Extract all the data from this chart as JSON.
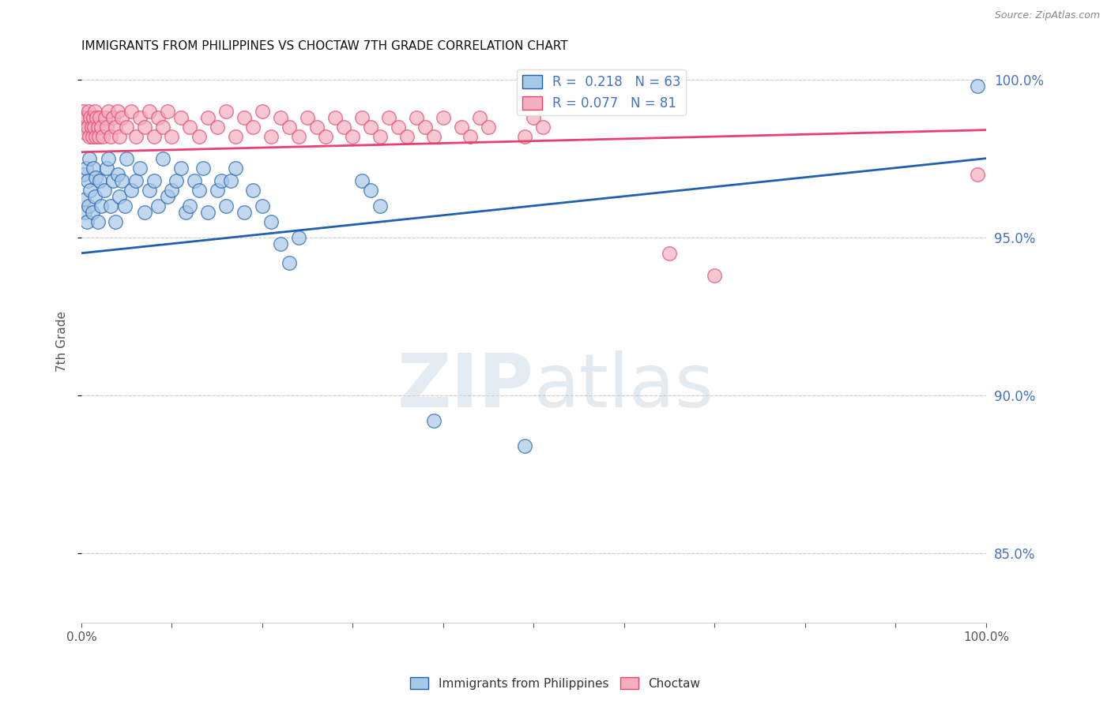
{
  "title": "IMMIGRANTS FROM PHILIPPINES VS CHOCTAW 7TH GRADE CORRELATION CHART",
  "source": "Source: ZipAtlas.com",
  "ylabel": "7th Grade",
  "right_yticks": [
    "85.0%",
    "90.0%",
    "95.0%",
    "100.0%"
  ],
  "right_ytick_vals": [
    0.85,
    0.9,
    0.95,
    1.0
  ],
  "legend_blue_r": "0.218",
  "legend_blue_n": "63",
  "legend_pink_r": "0.077",
  "legend_pink_n": "81",
  "blue_color": "#a8c8e8",
  "pink_color": "#f4b0c0",
  "blue_line_color": "#2060b0",
  "pink_line_color": "#e84070",
  "watermark_zip": "ZIP",
  "watermark_atlas": "atlas",
  "blue_scatter_x": [
    0.002,
    0.003,
    0.004,
    0.005,
    0.006,
    0.007,
    0.008,
    0.009,
    0.01,
    0.012,
    0.013,
    0.015,
    0.016,
    0.018,
    0.02,
    0.022,
    0.025,
    0.028,
    0.03,
    0.032,
    0.035,
    0.038,
    0.04,
    0.042,
    0.045,
    0.048,
    0.05,
    0.055,
    0.06,
    0.065,
    0.07,
    0.075,
    0.08,
    0.085,
    0.09,
    0.095,
    0.1,
    0.105,
    0.11,
    0.115,
    0.12,
    0.125,
    0.13,
    0.135,
    0.14,
    0.15,
    0.155,
    0.16,
    0.165,
    0.17,
    0.18,
    0.19,
    0.2,
    0.21,
    0.22,
    0.23,
    0.24,
    0.31,
    0.32,
    0.33,
    0.39,
    0.49,
    0.99
  ],
  "blue_scatter_y": [
    0.97,
    0.962,
    0.958,
    0.972,
    0.955,
    0.968,
    0.96,
    0.975,
    0.965,
    0.958,
    0.972,
    0.963,
    0.969,
    0.955,
    0.968,
    0.96,
    0.965,
    0.972,
    0.975,
    0.96,
    0.968,
    0.955,
    0.97,
    0.963,
    0.968,
    0.96,
    0.975,
    0.965,
    0.968,
    0.972,
    0.958,
    0.965,
    0.968,
    0.96,
    0.975,
    0.963,
    0.965,
    0.968,
    0.972,
    0.958,
    0.96,
    0.968,
    0.965,
    0.972,
    0.958,
    0.965,
    0.968,
    0.96,
    0.968,
    0.972,
    0.958,
    0.965,
    0.96,
    0.955,
    0.948,
    0.942,
    0.95,
    0.968,
    0.965,
    0.96,
    0.892,
    0.884,
    0.998
  ],
  "pink_scatter_x": [
    0.002,
    0.003,
    0.004,
    0.005,
    0.006,
    0.007,
    0.008,
    0.009,
    0.01,
    0.011,
    0.012,
    0.013,
    0.014,
    0.015,
    0.016,
    0.017,
    0.018,
    0.019,
    0.02,
    0.022,
    0.024,
    0.026,
    0.028,
    0.03,
    0.032,
    0.035,
    0.038,
    0.04,
    0.042,
    0.045,
    0.05,
    0.055,
    0.06,
    0.065,
    0.07,
    0.075,
    0.08,
    0.085,
    0.09,
    0.095,
    0.1,
    0.11,
    0.12,
    0.13,
    0.14,
    0.15,
    0.16,
    0.17,
    0.18,
    0.19,
    0.2,
    0.21,
    0.22,
    0.23,
    0.24,
    0.25,
    0.26,
    0.27,
    0.28,
    0.29,
    0.3,
    0.31,
    0.32,
    0.33,
    0.34,
    0.35,
    0.36,
    0.37,
    0.38,
    0.39,
    0.4,
    0.42,
    0.43,
    0.44,
    0.45,
    0.49,
    0.5,
    0.51,
    0.65,
    0.7,
    0.99
  ],
  "pink_scatter_y": [
    0.99,
    0.988,
    0.985,
    0.983,
    0.988,
    0.985,
    0.99,
    0.982,
    0.988,
    0.985,
    0.982,
    0.988,
    0.985,
    0.99,
    0.982,
    0.988,
    0.985,
    0.982,
    0.988,
    0.985,
    0.982,
    0.988,
    0.985,
    0.99,
    0.982,
    0.988,
    0.985,
    0.99,
    0.982,
    0.988,
    0.985,
    0.99,
    0.982,
    0.988,
    0.985,
    0.99,
    0.982,
    0.988,
    0.985,
    0.99,
    0.982,
    0.988,
    0.985,
    0.982,
    0.988,
    0.985,
    0.99,
    0.982,
    0.988,
    0.985,
    0.99,
    0.982,
    0.988,
    0.985,
    0.982,
    0.988,
    0.985,
    0.982,
    0.988,
    0.985,
    0.982,
    0.988,
    0.985,
    0.982,
    0.988,
    0.985,
    0.982,
    0.988,
    0.985,
    0.982,
    0.988,
    0.985,
    0.982,
    0.988,
    0.985,
    0.982,
    0.988,
    0.985,
    0.945,
    0.938,
    0.97
  ],
  "xlim": [
    0.0,
    1.0
  ],
  "ylim": [
    0.828,
    1.006
  ],
  "blue_trend_x0": 0.0,
  "blue_trend_x1": 1.0,
  "blue_trend_y0": 0.945,
  "blue_trend_y1": 0.975,
  "pink_trend_x0": 0.0,
  "pink_trend_x1": 1.0,
  "pink_trend_y0": 0.977,
  "pink_trend_y1": 0.984,
  "grid_color": "#cccccc",
  "right_axis_color": "#4472c4",
  "background_color": "#ffffff"
}
